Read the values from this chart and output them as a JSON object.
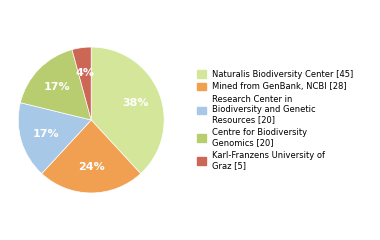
{
  "slices": [
    45,
    28,
    20,
    20,
    5
  ],
  "legend_labels": [
    "Naturalis Biodiversity Center [45]",
    "Mined from GenBank, NCBI [28]",
    "Research Center in\nBiodiversity and Genetic\nResources [20]",
    "Centre for Biodiversity\nGenomics [20]",
    "Karl-Franzens University of\nGraz [5]"
  ],
  "colors": [
    "#d4e69a",
    "#f0a050",
    "#a8c8e8",
    "#b8cc70",
    "#cc6655"
  ],
  "background_color": "#ffffff",
  "startangle": 90,
  "pct_fontsize": 8
}
